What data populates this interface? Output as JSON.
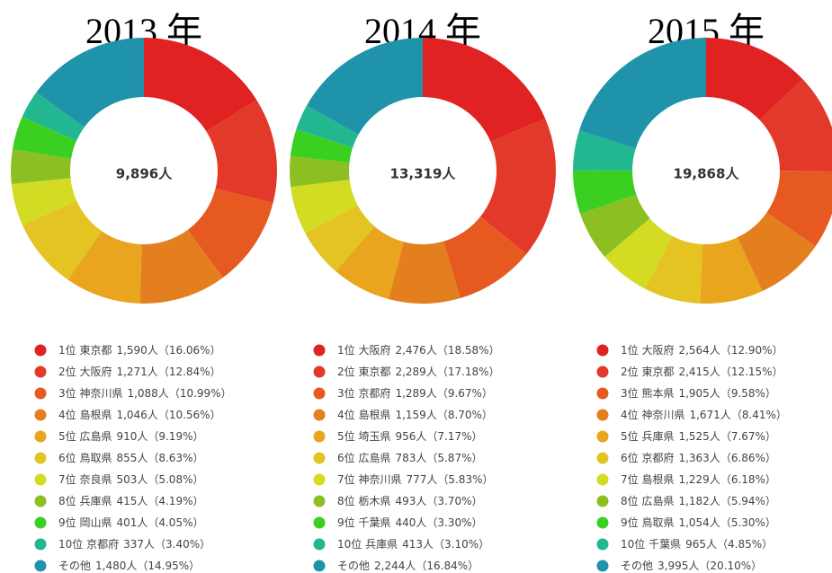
{
  "chart_data": [
    {
      "type": "pie",
      "title": "2013 年",
      "total": 9896,
      "total_label": "9,896人",
      "categories": [
        "1位 東京都",
        "2位 大阪府",
        "3位 神奈川県",
        "4位 島根県",
        "5位 広島県",
        "6位 鳥取県",
        "7位 奈良県",
        "8位 兵庫県",
        "9位 岡山県",
        "10位 京都府",
        "その他"
      ],
      "values": [
        1590,
        1271,
        1088,
        1046,
        910,
        855,
        503,
        415,
        401,
        337,
        1480
      ],
      "value_labels": [
        "1,590人",
        "1,271人",
        "1,088人",
        "1,046人",
        "910人",
        "855人",
        "503人",
        "415人",
        "401人",
        "337人",
        "1,480人"
      ],
      "percents": [
        16.06,
        12.84,
        10.99,
        10.56,
        9.19,
        8.63,
        5.08,
        4.19,
        4.05,
        3.4,
        14.95
      ],
      "percent_labels": [
        "（16.06%）",
        "（12.84%）",
        "（10.99%）",
        "（10.56%）",
        "（9.19%）",
        "（8.63%）",
        "（5.08%）",
        "（4.19%）",
        "（4.05%）",
        "（3.40%）",
        "（14.95%）"
      ],
      "colors": [
        "#e02222",
        "#e2392a",
        "#e65a22",
        "#e47f1f",
        "#e9a51d",
        "#e3c423",
        "#d3dc22",
        "#8cbf22",
        "#3bcf21",
        "#22b790",
        "#1f93a9"
      ]
    },
    {
      "type": "pie",
      "title": "2014 年",
      "total": 13319,
      "total_label": "13,319人",
      "categories": [
        "1位 大阪府",
        "2位 東京都",
        "3位 京都府",
        "4位 島根県",
        "5位 埼玉県",
        "6位 広島県",
        "7位 神奈川県",
        "8位 栃木県",
        "9位 千葉県",
        "10位 兵庫県",
        "その他"
      ],
      "values": [
        2476,
        2289,
        1289,
        1159,
        956,
        783,
        777,
        493,
        440,
        413,
        2244
      ],
      "value_labels": [
        "2,476人",
        "2,289人",
        "1,289人",
        "1,159人",
        "956人",
        "783人",
        "777人",
        "493人",
        "440人",
        "413人",
        "2,244人"
      ],
      "percents": [
        18.58,
        17.18,
        9.67,
        8.7,
        7.17,
        5.87,
        5.83,
        3.7,
        3.3,
        3.1,
        16.84
      ],
      "percent_labels": [
        "（18.58%）",
        "（17.18%）",
        "（9.67%）",
        "（8.70%）",
        "（7.17%）",
        "（5.87%）",
        "（5.83%）",
        "（3.70%）",
        "（3.30%）",
        "（3.10%）",
        "（16.84%）"
      ],
      "colors": [
        "#e02222",
        "#e2392a",
        "#e65a22",
        "#e47f1f",
        "#e9a51d",
        "#e3c423",
        "#d3dc22",
        "#8cbf22",
        "#3bcf21",
        "#22b790",
        "#1f93a9"
      ]
    },
    {
      "type": "pie",
      "title": "2015 年",
      "total": 19868,
      "total_label": "19,868人",
      "categories": [
        "1位 大阪府",
        "2位 東京都",
        "3位 熊本県",
        "4位 神奈川県",
        "5位 兵庫県",
        "6位 京都府",
        "7位 島根県",
        "8位 広島県",
        "9位 鳥取県",
        "10位 千葉県",
        "その他"
      ],
      "values": [
        2564,
        2415,
        1905,
        1671,
        1525,
        1363,
        1229,
        1182,
        1054,
        965,
        3995
      ],
      "value_labels": [
        "2,564人",
        "2,415人",
        "1,905人",
        "1,671人",
        "1,525人",
        "1,363人",
        "1,229人",
        "1,182人",
        "1,054人",
        "965人",
        "3,995人"
      ],
      "percents": [
        12.9,
        12.15,
        9.58,
        8.41,
        7.67,
        6.86,
        6.18,
        5.94,
        5.3,
        4.85,
        20.1
      ],
      "percent_labels": [
        "（12.90%）",
        "（12.15%）",
        "（9.58%）",
        "（8.41%）",
        "（7.67%）",
        "（6.86%）",
        "（6.18%）",
        "（5.94%）",
        "（5.30%）",
        "（4.85%）",
        "（20.10%）"
      ],
      "colors": [
        "#e02222",
        "#e2392a",
        "#e65a22",
        "#e47f1f",
        "#e9a51d",
        "#e3c423",
        "#d3dc22",
        "#8cbf22",
        "#3bcf21",
        "#22b790",
        "#1f93a9"
      ]
    }
  ]
}
